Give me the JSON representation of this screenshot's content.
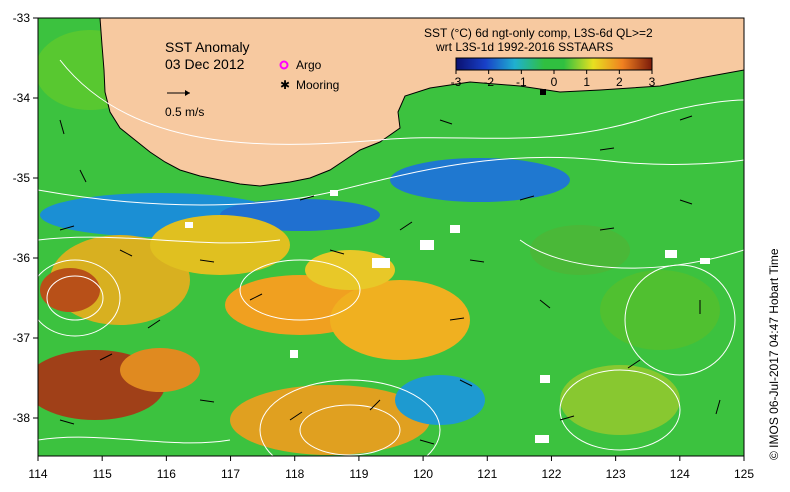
{
  "map": {
    "title": "SST Anomaly",
    "date": "03 Dec 2012",
    "current_scale": "0.5 m/s",
    "legend_argo": "Argo",
    "legend_mooring": "Mooring",
    "colorbar_title_1": "SST (°C) 6d ngt-only comp, L3S-6d QL>=2",
    "colorbar_title_2": "wrt L3S-1d 1992-2016 SSTAARS",
    "colorbar_ticks": [
      "-3",
      "-2",
      "-1",
      "0",
      "1",
      "2",
      "3"
    ],
    "credit": "©  IMOS 06-Jul-2017 04:47 Hobart Time",
    "lon_labels": [
      "114",
      "115",
      "116",
      "117",
      "118",
      "119",
      "120",
      "121",
      "122",
      "123",
      "124",
      "125"
    ],
    "lat_labels": [
      "-33",
      "-34",
      "-35",
      "-36",
      "-37",
      "-38"
    ],
    "colors": {
      "land": "#f7c9a0",
      "cold": "#0a1f8c",
      "neutral": "#27c23a",
      "warm": "#f5a623",
      "hot": "#7a1a0a",
      "contour": "#ffffff",
      "argo": "#ff00ff"
    }
  }
}
